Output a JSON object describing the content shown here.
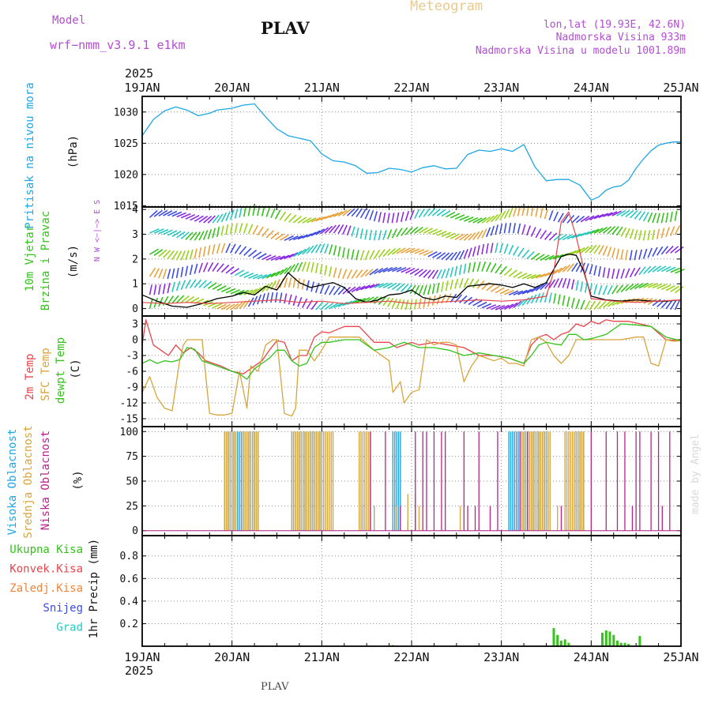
{
  "header": {
    "model_label": "Model",
    "model_name": "wrf−nmm_v3.9.1  e1km",
    "station": "PLAV",
    "product": "Meteogram",
    "lonlat": "lon,lat (19.93E, 42.6N)",
    "elevation": "Nadmorska Visina 933m",
    "model_elevation": "Nadmorska Visina u modelu 1001.89m",
    "footer_station": "PLAV",
    "watermark": "made by Angel"
  },
  "time_axis": {
    "year": "2025",
    "ticks": [
      "19JAN",
      "20JAN",
      "21JAN",
      "22JAN",
      "23JAN",
      "24JAN",
      "25JAN"
    ],
    "start_hour": 0,
    "end_hour": 144
  },
  "colors": {
    "pressure": "#1ea6e6",
    "t2m": "#e8454a",
    "sfc": "#d7a53c",
    "dewpt": "#34c21b",
    "cloud_high": "#1ea6e6",
    "cloud_mid": "#d7a53c",
    "cloud_low": "#b8238c",
    "precip_total": "#34c21b",
    "precip_conv": "#e8454a",
    "precip_frozen": "#f2853a",
    "precip_snow": "#3d4ce0",
    "precip_hail": "#27c7bf",
    "wind_label": "#34c21b",
    "wind_dir_label": "#b44dd4",
    "header_purple": "#b44dd4",
    "meteogram_title": "#e9c98c"
  },
  "chart_data": [
    {
      "type": "line",
      "panel": "pressure",
      "ylabel_lines": [
        "Pritisak na nivou mora"
      ],
      "unit": "(hPa)",
      "yticks": [
        1015,
        1020,
        1025,
        1030
      ],
      "ylim": [
        1014.8,
        1032.5
      ],
      "grid": true,
      "series": [
        {
          "color_key": "pressure",
          "x": [
            0,
            3,
            6,
            9,
            12,
            15,
            18,
            20,
            24,
            27,
            30,
            33,
            36,
            39,
            42,
            45,
            48,
            51,
            54,
            57,
            60,
            63,
            66,
            69,
            72,
            75,
            78,
            81,
            84,
            87,
            90,
            93,
            96,
            99,
            102,
            105,
            108,
            111,
            114,
            117,
            120,
            122,
            124,
            126,
            128,
            130,
            132,
            134,
            136,
            138,
            140,
            142,
            144
          ],
          "y": [
            1026.2,
            1028.8,
            1030.2,
            1030.8,
            1030.3,
            1029.4,
            1029.8,
            1030.3,
            1030.6,
            1031.1,
            1031.3,
            1029.2,
            1027.3,
            1026.2,
            1025.8,
            1025.4,
            1023.3,
            1022.2,
            1022.0,
            1021.4,
            1020.2,
            1020.3,
            1021.0,
            1020.8,
            1020.4,
            1021.1,
            1021.4,
            1020.9,
            1021.0,
            1023.2,
            1023.9,
            1023.7,
            1024.1,
            1023.7,
            1024.8,
            1021.2,
            1019.0,
            1019.2,
            1019.2,
            1018.3,
            1015.9,
            1016.4,
            1017.5,
            1018.0,
            1018.2,
            1019.1,
            1021.0,
            1022.5,
            1023.8,
            1024.7,
            1025.0,
            1025.2,
            1025.2
          ]
        }
      ]
    },
    {
      "type": "line",
      "panel": "wind",
      "ylabel_lines": [
        "10m Vjetar",
        "Brzina i Pravac"
      ],
      "unit": "(m/s)",
      "dir_legend": "N  W <−|−> E  S",
      "yticks": [
        0,
        1,
        2,
        3,
        4
      ],
      "ylim": [
        -0.3,
        4.1
      ],
      "grid": true,
      "series": [
        {
          "name": "speed",
          "color": "#000000",
          "x": [
            0,
            4,
            8,
            12,
            16,
            20,
            24,
            27,
            30,
            33,
            36,
            39,
            42,
            45,
            48,
            51,
            54,
            57,
            60,
            63,
            66,
            69,
            72,
            75,
            78,
            81,
            84,
            87,
            90,
            93,
            96,
            99,
            102,
            105,
            108,
            111,
            112,
            114,
            116,
            118,
            120,
            124,
            128,
            132,
            136,
            140,
            144
          ],
          "y": [
            0.55,
            0.3,
            0.1,
            0.05,
            0.2,
            0.4,
            0.5,
            0.65,
            0.55,
            0.9,
            0.75,
            1.45,
            1.05,
            0.85,
            0.95,
            1.05,
            0.85,
            0.4,
            0.25,
            0.35,
            0.55,
            0.6,
            0.75,
            0.45,
            0.35,
            0.5,
            0.45,
            0.9,
            0.95,
            1.0,
            0.95,
            0.85,
            1.0,
            0.85,
            1.05,
            1.85,
            2.1,
            2.2,
            2.15,
            1.5,
            0.5,
            0.35,
            0.3,
            0.35,
            0.3,
            0.3,
            0.35
          ]
        },
        {
          "name": "speed_dash",
          "color": "#e8454a",
          "x": [
            0,
            6,
            12,
            18,
            24,
            30,
            36,
            42,
            48,
            54,
            60,
            66,
            72,
            78,
            84,
            90,
            96,
            102,
            108,
            110,
            112,
            114,
            116,
            118,
            120,
            126,
            132,
            138,
            144
          ],
          "y": [
            0.25,
            0.2,
            0.25,
            0.2,
            0.25,
            0.3,
            0.35,
            0.25,
            0.3,
            0.2,
            0.25,
            0.3,
            0.2,
            0.25,
            0.3,
            0.35,
            0.3,
            0.35,
            0.5,
            1.5,
            3.5,
            3.9,
            2.9,
            1.6,
            0.4,
            0.3,
            0.25,
            0.3,
            0.35
          ]
        }
      ]
    },
    {
      "type": "line",
      "panel": "temperature",
      "ylabel_lines": [
        "2m Temp",
        "SFC Temp",
        "dewpt Temp"
      ],
      "unit": "(C)",
      "yticks": [
        -15,
        -12,
        -9,
        -6,
        -3,
        0,
        3
      ],
      "ylim": [
        -16.5,
        4.5
      ],
      "grid": true,
      "series": [
        {
          "name": "2m Temp",
          "color_key": "t2m",
          "x": [
            0,
            1,
            3,
            5,
            7,
            9,
            11,
            13,
            15,
            17,
            19,
            21,
            24,
            27,
            30,
            32,
            34,
            36,
            38,
            40,
            42,
            44,
            46,
            48,
            50,
            54,
            58,
            62,
            66,
            68,
            70,
            72,
            74,
            78,
            82,
            86,
            90,
            94,
            98,
            102,
            104,
            106,
            108,
            110,
            112,
            114,
            116,
            118,
            120,
            122,
            124,
            126,
            128,
            130,
            132,
            136,
            140,
            144
          ],
          "y": [
            -1,
            3.8,
            -1,
            -2,
            -3,
            -1,
            -2.5,
            -1.5,
            -2.5,
            -4,
            -4.5,
            -5,
            -6,
            -6.5,
            -5,
            -4,
            -2,
            -0.2,
            -0.5,
            -4,
            -3,
            -3,
            0.5,
            1.5,
            1.3,
            2.5,
            2.5,
            -0.5,
            -0.5,
            -1.5,
            -1,
            -0.5,
            -1,
            -0.5,
            -1,
            -1.5,
            -3,
            -3,
            -3.5,
            -4.5,
            -1,
            0.5,
            1,
            0,
            1,
            1.5,
            3,
            2.5,
            3.5,
            3,
            3.8,
            3.5,
            3.5,
            3.5,
            3.2,
            2.5,
            0,
            -0.2
          ]
        },
        {
          "name": "SFC Temp",
          "color_key": "sfc",
          "x": [
            0,
            2,
            4,
            6,
            8,
            10,
            11,
            12,
            14,
            16,
            18,
            20,
            22,
            24,
            26,
            28,
            29,
            31,
            33,
            35,
            36,
            38,
            40,
            41,
            42,
            44,
            46,
            48,
            50,
            54,
            58,
            62,
            66,
            67,
            69,
            70,
            72,
            74,
            76,
            78,
            80,
            82,
            84,
            86,
            88,
            90,
            92,
            94,
            96,
            98,
            100,
            102,
            104,
            106,
            108,
            110,
            112,
            114,
            116,
            118,
            120,
            124,
            128,
            132,
            134,
            136,
            138,
            140,
            142,
            144
          ],
          "y": [
            -10,
            -7,
            -11,
            -13,
            -13.5,
            -4,
            -1,
            0,
            0,
            0,
            -14,
            -14.3,
            -14.3,
            -14,
            -6,
            -13,
            -5,
            -6,
            -1,
            0,
            0,
            -14,
            -14.5,
            -13,
            -2,
            -2,
            -4,
            -2,
            0.5,
            0.5,
            0.5,
            -2,
            -4,
            -10,
            -8,
            -12,
            -10,
            -9.5,
            0,
            -1,
            -0.5,
            -0.5,
            -1,
            -8,
            -5,
            -3,
            -3.5,
            -4,
            -3.5,
            -4.5,
            -4.5,
            -5,
            0,
            0.5,
            -0.5,
            -3,
            -4.5,
            -3,
            0,
            0,
            0,
            0,
            0,
            0.5,
            0.5,
            -4.5,
            -5,
            0,
            -0.3,
            -0.2
          ]
        },
        {
          "name": "dewpt Temp",
          "color_key": "dewpt",
          "x": [
            0,
            2,
            4,
            6,
            8,
            10,
            12,
            14,
            16,
            18,
            20,
            22,
            24,
            26,
            28,
            30,
            32,
            34,
            36,
            38,
            40,
            42,
            44,
            46,
            48,
            50,
            54,
            58,
            62,
            66,
            70,
            74,
            78,
            82,
            86,
            90,
            94,
            98,
            102,
            104,
            106,
            108,
            110,
            112,
            114,
            116,
            118,
            120,
            124,
            128,
            132,
            136,
            140,
            144
          ],
          "y": [
            -4.5,
            -3.8,
            -4.5,
            -4,
            -4.2,
            -3.8,
            -1.5,
            -1.8,
            -4,
            -4.5,
            -5,
            -5.5,
            -6,
            -6.5,
            -7.5,
            -5.5,
            -4.5,
            -3.5,
            -2,
            -2,
            -4,
            -5,
            -4.5,
            -1.5,
            -0.5,
            -0.5,
            0,
            0,
            -2,
            -1.5,
            -0.5,
            -1.5,
            -1.5,
            -2,
            -3,
            -2.5,
            -3,
            -3.5,
            -4.5,
            -3,
            -1,
            -0.5,
            -0.8,
            -1,
            1,
            1,
            0,
            0.2,
            1,
            3,
            2.8,
            2.5,
            0.5,
            -0.2
          ]
        }
      ]
    },
    {
      "type": "bar",
      "panel": "cloud",
      "ylabel_lines": [
        "Visoka Oblacnost",
        "Srednja Oblacnost",
        "Niska Oblacnost"
      ],
      "unit": "(%)",
      "yticks": [
        0,
        25,
        50,
        75,
        100
      ],
      "ylim": [
        -5,
        105
      ],
      "grid": true,
      "series": [
        {
          "name": "Visoka Oblacnost",
          "color_key": "cloud_high",
          "ranges": [
            [
              22,
              31
            ],
            [
              40,
              48
            ],
            [
              67,
              69
            ],
            [
              98,
              108
            ],
            [
              116,
              118
            ]
          ],
          "value": 100,
          "extra": [
            [
              59,
              25
            ],
            [
              62,
              25
            ],
            [
              71,
              10
            ],
            [
              73,
              25
            ],
            [
              106,
              30
            ],
            [
              117,
              20
            ],
            [
              118,
              30
            ]
          ]
        },
        {
          "name": "Srednja Oblacnost",
          "color_key": "cloud_mid",
          "ranges": [
            [
              22,
              25
            ],
            [
              27,
              31
            ],
            [
              40,
              51
            ],
            [
              58,
              61
            ],
            [
              101,
              109
            ],
            [
              113,
              118
            ]
          ],
          "value": 100,
          "extra": [
            [
              62,
              25
            ],
            [
              68,
              25
            ],
            [
              74,
              25
            ],
            [
              71,
              37
            ],
            [
              73,
              37
            ],
            [
              85,
              25
            ],
            [
              111,
              25
            ]
          ]
        },
        {
          "name": "Niska Oblacnost",
          "color_key": "cloud_low",
          "ranges": [],
          "value": 100,
          "extra": [
            [
              61,
              100
            ],
            [
              65,
              100
            ],
            [
              73,
              100
            ],
            [
              75,
              100
            ],
            [
              76,
              100
            ],
            [
              78,
              100
            ],
            [
              80,
              100
            ],
            [
              81,
              100
            ],
            [
              86,
              100
            ],
            [
              90,
              100
            ],
            [
              95,
              100
            ],
            [
              101,
              100
            ],
            [
              103,
              100
            ],
            [
              120,
              100
            ],
            [
              124,
              100
            ],
            [
              127,
              100
            ],
            [
              129,
              100
            ],
            [
              132,
              100
            ],
            [
              133,
              100
            ],
            [
              136,
              100
            ],
            [
              138,
              100
            ],
            [
              141,
              100
            ],
            [
              69,
              25
            ],
            [
              87,
              25
            ],
            [
              89,
              25
            ],
            [
              93,
              25
            ],
            [
              112,
              25
            ],
            [
              131,
              25
            ],
            [
              139,
              25
            ],
            [
              144,
              25
            ]
          ]
        }
      ]
    },
    {
      "type": "bar",
      "panel": "precip",
      "ylabel_lines": [
        "Ukupna Kisa",
        "Konvek.Kisa",
        "Zaledj.Kisa",
        "Snijeg",
        "Grad"
      ],
      "unit": "1hr Precip (mm)",
      "yticks": [
        0.2,
        0.4,
        0.6,
        0.8
      ],
      "ylim": [
        0,
        0.98
      ],
      "grid": true,
      "series": [
        {
          "name": "Ukupna Kisa",
          "color_key": "precip_total",
          "x": [
            67,
            110,
            111,
            112,
            113,
            114,
            123,
            124,
            125,
            126,
            127,
            128,
            129,
            130,
            133
          ],
          "y": [
            0.01,
            0.16,
            0.1,
            0.05,
            0.06,
            0.03,
            0.12,
            0.14,
            0.13,
            0.1,
            0.05,
            0.03,
            0.03,
            0.02,
            0.09
          ]
        }
      ]
    }
  ]
}
